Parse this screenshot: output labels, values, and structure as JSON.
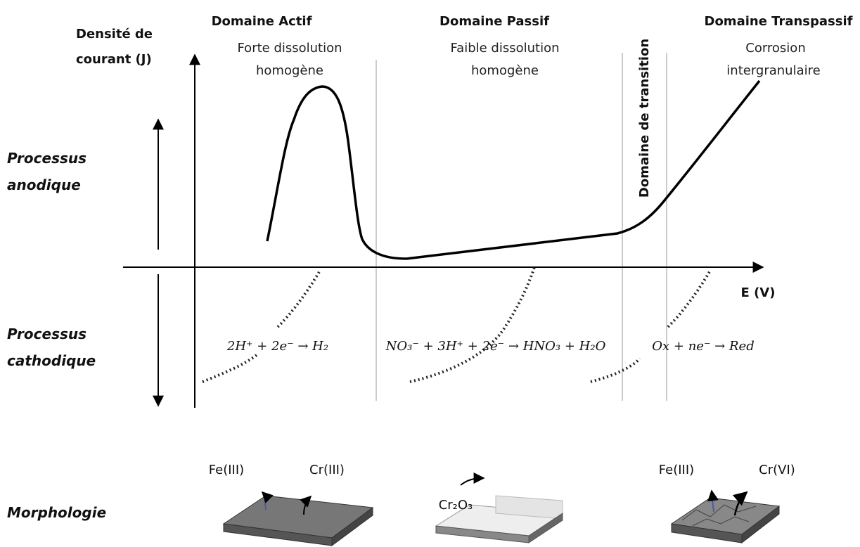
{
  "axes": {
    "y_label": [
      "Densité de",
      "courant (J)"
    ],
    "x_label": "E (V)"
  },
  "domains": [
    {
      "title": "Domaine Actif",
      "description": [
        "Forte dissolution",
        "homogène"
      ]
    },
    {
      "title": "Domaine Passif",
      "description": [
        "Faible dissolution",
        "homogène"
      ]
    },
    {
      "title": "Domaine Transpassif",
      "description": [
        "Corrosion",
        "intergranulaire"
      ]
    }
  ],
  "transition": "Domaine de transition",
  "processes": {
    "anodic": [
      "Processus",
      "anodique"
    ],
    "cathodic": [
      "Processus",
      "cathodique"
    ]
  },
  "reactions": [
    "2H⁺ + 2e⁻ → H₂",
    "NO₃⁻ + 3H⁺ + 2e⁻ → HNO₃ + H₂O",
    "Ox + ne⁻ → Red"
  ],
  "morphology": {
    "label": "Morphologie",
    "active": [
      "Fe(III)",
      "Cr(III)"
    ],
    "passive": "Cr₂O₃",
    "transpassive": [
      "Fe(III)",
      "Cr(VI)"
    ]
  }
}
